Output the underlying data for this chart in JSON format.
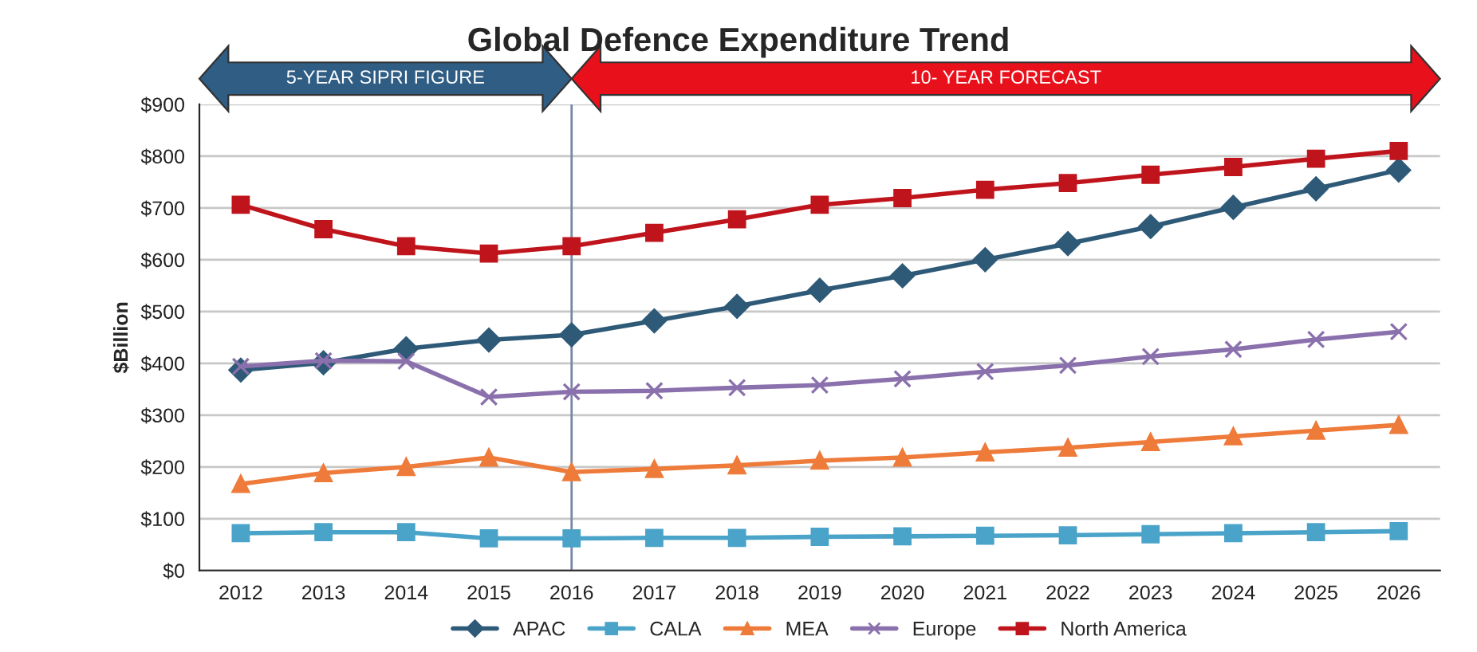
{
  "chart_data": {
    "type": "line",
    "title": "Global Defence Expenditure Trend",
    "ylabel": "$Billion",
    "categories": [
      "2012",
      "2013",
      "2014",
      "2015",
      "2016",
      "2017",
      "2018",
      "2019",
      "2020",
      "2021",
      "2022",
      "2023",
      "2024",
      "2025",
      "2026"
    ],
    "series": [
      {
        "name": "APAC",
        "color": "#2e5a78",
        "marker": "diamond",
        "values": [
          387,
          401,
          428,
          445,
          455,
          482,
          510,
          541,
          569,
          600,
          631,
          664,
          701,
          737,
          773
        ]
      },
      {
        "name": "CALA",
        "color": "#4aa3c8",
        "marker": "square",
        "values": [
          72,
          74,
          74,
          62,
          62,
          63,
          63,
          65,
          66,
          67,
          68,
          70,
          72,
          74,
          76
        ]
      },
      {
        "name": "MEA",
        "color": "#ee7b3a",
        "marker": "triangle",
        "values": [
          167,
          188,
          200,
          218,
          190,
          196,
          203,
          212,
          218,
          228,
          237,
          248,
          259,
          270,
          281
        ]
      },
      {
        "name": "Europe",
        "color": "#8a70ac",
        "marker": "cross",
        "values": [
          394,
          405,
          404,
          335,
          345,
          347,
          353,
          358,
          370,
          384,
          396,
          413,
          427,
          446,
          461
        ]
      },
      {
        "name": "North America",
        "color": "#c0141c",
        "marker": "square",
        "values": [
          706,
          659,
          626,
          612,
          626,
          652,
          678,
          706,
          719,
          735,
          748,
          764,
          779,
          795,
          810
        ]
      }
    ],
    "ylim": [
      0,
      900
    ],
    "yticks": [
      {
        "value": 0,
        "label": "$0"
      },
      {
        "value": 100,
        "label": "$100"
      },
      {
        "value": 200,
        "label": "$200"
      },
      {
        "value": 300,
        "label": "$300"
      },
      {
        "value": 400,
        "label": "$400"
      },
      {
        "value": 500,
        "label": "$500"
      },
      {
        "value": 600,
        "label": "$600"
      },
      {
        "value": 700,
        "label": "$700"
      },
      {
        "value": 800,
        "label": "$800"
      },
      {
        "value": 900,
        "label": "$900"
      }
    ],
    "ref_lines": [
      {
        "axis": "x",
        "value": "2016",
        "color": "#7a86a8"
      }
    ],
    "annotations": [
      "5-YEAR SIPRI FIGURE",
      "10- YEAR FORECAST"
    ],
    "grid": "y",
    "legend": "bottom",
    "line_style": "solid"
  }
}
